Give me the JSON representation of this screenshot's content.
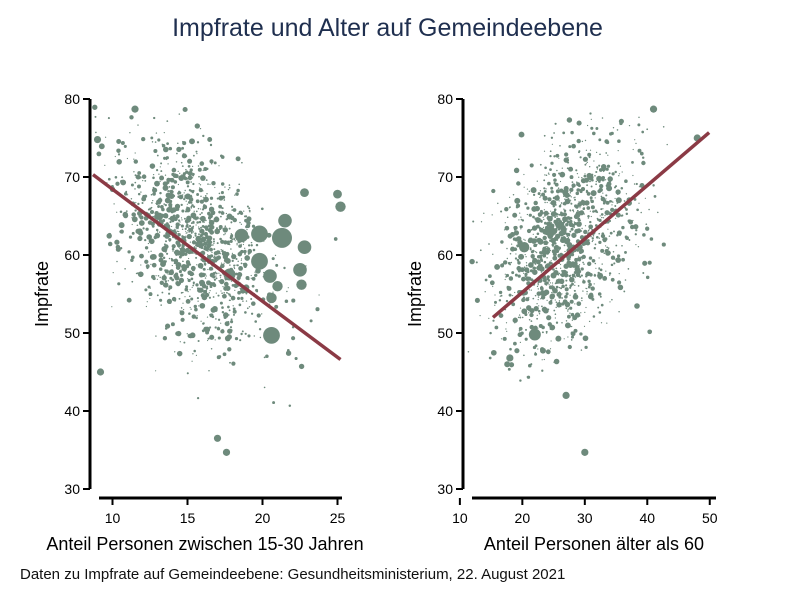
{
  "title": "Impfrate und Alter auf Gemeindeebene",
  "source": "Daten zu Impfrate auf Gemeindeebene: Gesundheitsministerium, 22. August 2021",
  "colors": {
    "points": "#6e8a7c",
    "fit_line": "#8b3a45",
    "title": "#1f2f4f"
  },
  "chart_data": [
    {
      "type": "scatter",
      "xlabel": "Anteil Personen zwischen 15-30 Jahren",
      "ylabel": "Impfrate",
      "xlim": [
        8.5,
        25.3
      ],
      "ylim": [
        30,
        80
      ],
      "xticks": [
        10,
        15,
        20,
        25
      ],
      "yticks": [
        30,
        40,
        50,
        60,
        70,
        80
      ],
      "fit_line": [
        [
          8.7,
          70.3
        ],
        [
          25.2,
          46.6
        ]
      ],
      "cloud": {
        "center": [
          15.5,
          61.5
        ],
        "spread": [
          2.2,
          6.5
        ],
        "correlation": -0.45,
        "count": 1300
      },
      "highlight_points": [
        {
          "x": 19.8,
          "y": 62.7,
          "weight": 4
        },
        {
          "x": 21.3,
          "y": 62.2,
          "weight": 5
        },
        {
          "x": 22.8,
          "y": 61.0,
          "weight": 3
        },
        {
          "x": 21.5,
          "y": 64.4,
          "weight": 3
        },
        {
          "x": 22.5,
          "y": 58.1,
          "weight": 3
        },
        {
          "x": 19.8,
          "y": 59.2,
          "weight": 4
        },
        {
          "x": 18.6,
          "y": 62.5,
          "weight": 3
        },
        {
          "x": 20.5,
          "y": 57.3,
          "weight": 3
        },
        {
          "x": 21.0,
          "y": 56.0,
          "weight": 2
        },
        {
          "x": 20.6,
          "y": 49.7,
          "weight": 4
        },
        {
          "x": 20.6,
          "y": 54.5,
          "weight": 2
        },
        {
          "x": 22.6,
          "y": 56.2,
          "weight": 2
        },
        {
          "x": 25.2,
          "y": 66.2,
          "weight": 2
        },
        {
          "x": 25.0,
          "y": 67.8,
          "weight": 1.5
        },
        {
          "x": 22.8,
          "y": 68.0,
          "weight": 1.5
        },
        {
          "x": 17.8,
          "y": 57.5,
          "weight": 2.5
        },
        {
          "x": 9.2,
          "y": 45.0,
          "weight": 1
        },
        {
          "x": 9.0,
          "y": 74.8,
          "weight": 1
        },
        {
          "x": 11.5,
          "y": 78.7,
          "weight": 1
        },
        {
          "x": 17.0,
          "y": 36.5,
          "weight": 1
        },
        {
          "x": 17.6,
          "y": 34.7,
          "weight": 1
        }
      ]
    },
    {
      "type": "scatter",
      "xlabel": "Anteil Personen älter als 60",
      "ylabel": "Impfrate",
      "xlim": [
        10.5,
        51
      ],
      "ylim": [
        30,
        80
      ],
      "xticks": [
        10,
        20,
        30,
        40,
        50
      ],
      "yticks": [
        30,
        40,
        50,
        60,
        70,
        80
      ],
      "fit_line": [
        [
          15.3,
          52.0
        ],
        [
          49.9,
          75.7
        ]
      ],
      "cloud": {
        "center": [
          27,
          61.5
        ],
        "spread": [
          5.0,
          6.5
        ],
        "correlation": 0.4,
        "count": 1300
      },
      "highlight_points": [
        {
          "x": 22.0,
          "y": 49.8,
          "weight": 2.5
        },
        {
          "x": 20.3,
          "y": 61.0,
          "weight": 2
        },
        {
          "x": 24.5,
          "y": 63.0,
          "weight": 2
        },
        {
          "x": 41.0,
          "y": 78.7,
          "weight": 1
        },
        {
          "x": 30.0,
          "y": 34.7,
          "weight": 1
        },
        {
          "x": 18.0,
          "y": 46.8,
          "weight": 1
        },
        {
          "x": 48.0,
          "y": 75.0,
          "weight": 1
        },
        {
          "x": 27.0,
          "y": 42.0,
          "weight": 1
        }
      ]
    }
  ]
}
